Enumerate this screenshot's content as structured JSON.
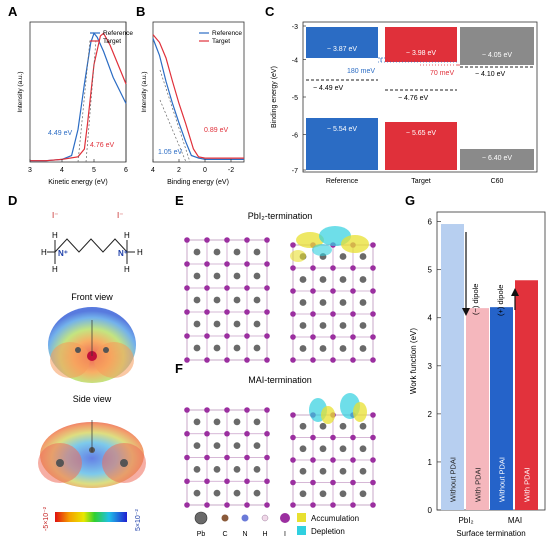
{
  "panels": {
    "A": {
      "letter": "A",
      "xlabel": "Kinetic energy (eV)",
      "ylabel": "Intensity (a.u.)",
      "x_ticks": [
        "3",
        "4",
        "5",
        "6"
      ],
      "legend": [
        "Reference",
        "Target"
      ],
      "annotations": [
        "4.49 eV",
        "4.76 eV"
      ]
    },
    "B": {
      "letter": "B",
      "xlabel": "Binding energy (eV)",
      "ylabel": "Intensity (a.u.)",
      "x_ticks": [
        "4",
        "2",
        "0",
        "-2"
      ],
      "legend": [
        "Reference",
        "Target"
      ],
      "annotations": [
        "1.05 eV",
        "0.89 eV"
      ]
    },
    "C": {
      "letter": "C",
      "ylabel": "Binding energy (eV)",
      "y_ticks": [
        "-3",
        "-4",
        "-5",
        "-6",
        "-7"
      ],
      "categories": [
        "Reference",
        "Target",
        "C60"
      ],
      "levels": [
        {
          "label": "− 3.87 eV"
        },
        {
          "label": "− 3.98 eV"
        },
        {
          "label": "− 4.05 eV"
        },
        {
          "label": "− 5.54 eV"
        },
        {
          "label": "− 5.65 eV"
        },
        {
          "label": "− 6.40 eV"
        },
        {
          "label": "− 4.49 eV"
        },
        {
          "label": "− 4.76 eV"
        },
        {
          "label": "− 4.10 eV"
        }
      ],
      "offsets": [
        "180 meV",
        "70 meV"
      ]
    },
    "D": {
      "letter": "D",
      "ions": [
        "I⁻",
        "I⁻"
      ],
      "front_title": "Front view",
      "side_title": "Side view",
      "scale_min": "-5×10⁻²",
      "scale_max": "5×10⁻²"
    },
    "E": {
      "letter": "E",
      "title": "PbI₂-termination"
    },
    "F": {
      "letter": "F",
      "title": "MAI-termination",
      "atom_legend": [
        "Pb",
        "C",
        "N",
        "H",
        "I"
      ],
      "density_legend": [
        "Accumulation",
        "Depletion"
      ]
    },
    "G": {
      "letter": "G",
      "ylabel": "Work function (eV)",
      "xlabel": "Surface termination",
      "y_ticks": [
        "0",
        "1",
        "2",
        "3",
        "4",
        "5",
        "6"
      ],
      "groups": [
        "PbI₂",
        "MAI"
      ],
      "bar_labels": [
        "Without PDAI",
        "With PDAI",
        "Without PDAI",
        "With PDAI"
      ],
      "dipoles": [
        "(−) dipole",
        "(+) dipole"
      ]
    }
  },
  "chart_data": [
    {
      "type": "line",
      "panel": "A",
      "xlabel": "Kinetic energy (eV)",
      "ylabel": "Intensity (a.u.)",
      "xlim": [
        3,
        6
      ],
      "series": [
        {
          "name": "Reference",
          "x": [
            3.0,
            3.5,
            4.0,
            4.3,
            4.5,
            4.7,
            4.9,
            5.0,
            5.1,
            5.3,
            5.6,
            6.0
          ],
          "y": [
            0.01,
            0.01,
            0.02,
            0.05,
            0.25,
            0.6,
            0.92,
            0.99,
            0.96,
            0.85,
            0.65,
            0.45
          ]
        },
        {
          "name": "Target",
          "x": [
            3.0,
            3.5,
            4.0,
            4.5,
            4.7,
            4.8,
            5.0,
            5.2,
            5.3,
            5.5,
            5.8,
            6.0
          ],
          "y": [
            0.01,
            0.01,
            0.02,
            0.04,
            0.1,
            0.3,
            0.75,
            0.97,
            0.99,
            0.9,
            0.72,
            0.6
          ]
        }
      ],
      "annotations": [
        {
          "text": "4.49 eV",
          "x": 4.49
        },
        {
          "text": "4.76 eV",
          "x": 4.76
        }
      ]
    },
    {
      "type": "line",
      "panel": "B",
      "xlabel": "Binding energy (eV)",
      "ylabel": "Intensity (a.u.)",
      "xlim": [
        4,
        -3
      ],
      "series": [
        {
          "name": "Reference",
          "x": [
            4.0,
            3.5,
            3.0,
            2.5,
            2.0,
            1.5,
            1.05,
            0.5,
            0,
            -1,
            -2,
            -3
          ],
          "y": [
            0.95,
            0.82,
            0.62,
            0.45,
            0.3,
            0.16,
            0.05,
            0.03,
            0.02,
            0.02,
            0.02,
            0.02
          ]
        },
        {
          "name": "Target",
          "x": [
            4.0,
            3.5,
            3.0,
            2.5,
            2.0,
            1.5,
            0.89,
            0.5,
            0,
            -1,
            -2,
            -3
          ],
          "y": [
            0.98,
            0.92,
            0.8,
            0.62,
            0.45,
            0.3,
            0.1,
            0.04,
            0.03,
            0.03,
            0.03,
            0.03
          ]
        }
      ],
      "annotations": [
        {
          "text": "1.05 eV",
          "x": 1.05
        },
        {
          "text": "0.89 eV",
          "x": 0.89
        }
      ]
    },
    {
      "type": "bar",
      "panel": "C",
      "ylabel": "Binding energy (eV)",
      "categories": [
        "Reference",
        "Target",
        "C60"
      ],
      "ylim": [
        -7,
        -3
      ],
      "series": [
        {
          "name": "CBM",
          "values": [
            -3.87,
            -3.98,
            -4.05
          ]
        },
        {
          "name": "VBM",
          "values": [
            -5.54,
            -5.65,
            -6.4
          ]
        },
        {
          "name": "Fermi",
          "values": [
            -4.49,
            -4.76,
            -4.1
          ]
        }
      ]
    },
    {
      "type": "bar",
      "panel": "G",
      "ylabel": "Work function (eV)",
      "xlabel": "Surface termination",
      "categories": [
        "PbI₂",
        "MAI"
      ],
      "ylim": [
        0,
        6.2
      ],
      "series": [
        {
          "name": "Without PDAI",
          "values": [
            5.95,
            4.22
          ]
        },
        {
          "name": "With PDAI",
          "values": [
            4.2,
            4.78
          ]
        }
      ]
    }
  ],
  "colors": {
    "reference": "#2b6cc4",
    "target": "#e0303a",
    "c60": "#8a8a8a",
    "g_without_pbi2": "#b7cff0",
    "g_with_pbi2": "#f5b7bd",
    "g_without_mai": "#2563c9",
    "g_with_mai": "#e2323c"
  }
}
